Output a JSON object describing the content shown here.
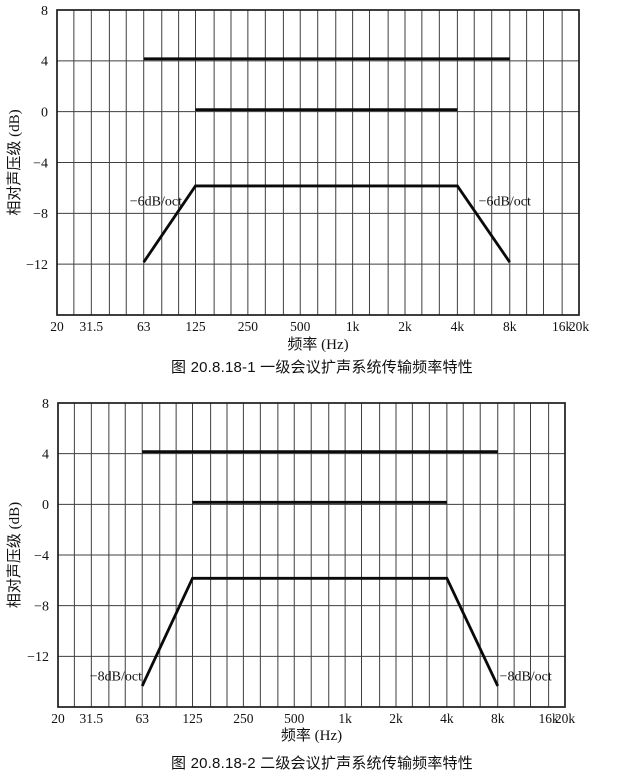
{
  "page": {
    "background": "#ffffff",
    "ink": "#111111",
    "grid_color": "#3f3f3f",
    "curve_color": "#0a0a0a"
  },
  "chart_data": [
    {
      "type": "line",
      "title": "图 20.8.18-1 一级会议扩声系统传输频率特性",
      "xlabel": "频率 (Hz)",
      "ylabel": "相对声压级 (dB)",
      "xlim": [
        20,
        20000
      ],
      "ylim": [
        -16,
        8
      ],
      "grid": "on",
      "grid_hz": [
        20,
        25,
        31.5,
        40,
        50,
        63,
        80,
        100,
        125,
        160,
        200,
        250,
        315,
        400,
        500,
        630,
        800,
        1000,
        1250,
        1600,
        2000,
        2500,
        3150,
        4000,
        5000,
        6300,
        8000,
        10000,
        12500,
        16000,
        20000
      ],
      "x_ticks": [
        {
          "hz": 20,
          "label": "20"
        },
        {
          "hz": 31.5,
          "label": "31.5"
        },
        {
          "hz": 63,
          "label": "63"
        },
        {
          "hz": 125,
          "label": "125"
        },
        {
          "hz": 250,
          "label": "250"
        },
        {
          "hz": 500,
          "label": "500"
        },
        {
          "hz": 1000,
          "label": "1k"
        },
        {
          "hz": 2000,
          "label": "2k"
        },
        {
          "hz": 4000,
          "label": "4k"
        },
        {
          "hz": 8000,
          "label": "8k"
        },
        {
          "hz": 16000,
          "label": "16k"
        },
        {
          "hz": 20000,
          "label": "20k"
        }
      ],
      "y_ticks": [
        {
          "db": 8,
          "label": "8"
        },
        {
          "db": 4,
          "label": "4"
        },
        {
          "db": 0,
          "label": "0"
        },
        {
          "db": -4,
          "label": "−4"
        },
        {
          "db": -8,
          "label": "−8"
        },
        {
          "db": -12,
          "label": "−12"
        }
      ],
      "series": [
        {
          "name": "upper-limit-line",
          "points": [
            [
              63,
              4
            ],
            [
              8000,
              4
            ]
          ]
        },
        {
          "name": "reference-0dB-line",
          "points": [
            [
              125,
              0
            ],
            [
              4000,
              0
            ]
          ]
        },
        {
          "name": "lower-limit-line",
          "points": [
            [
              63,
              -12
            ],
            [
              125,
              -6
            ],
            [
              4000,
              -6
            ],
            [
              8000,
              -12
            ]
          ]
        }
      ],
      "annotations": [
        {
          "text": "−6dB/oct",
          "hz": 74,
          "db": -7,
          "anchor": "middle"
        },
        {
          "text": "−6dB/oct",
          "hz": 5300,
          "db": -7,
          "anchor": "start"
        }
      ]
    },
    {
      "type": "line",
      "title": "图 20.8.18-2 二级会议扩声系统传输频率特性",
      "xlabel": "频率 (Hz)",
      "ylabel": "相对声压级 (dB)",
      "xlim": [
        20,
        20000
      ],
      "ylim": [
        -16,
        8
      ],
      "grid": "on",
      "grid_hz": [
        20,
        25,
        31.5,
        40,
        50,
        63,
        80,
        100,
        125,
        160,
        200,
        250,
        315,
        400,
        500,
        630,
        800,
        1000,
        1250,
        1600,
        2000,
        2500,
        3150,
        4000,
        5000,
        6300,
        8000,
        10000,
        12500,
        16000,
        20000
      ],
      "x_ticks": [
        {
          "hz": 20,
          "label": "20"
        },
        {
          "hz": 31.5,
          "label": "31.5"
        },
        {
          "hz": 63,
          "label": "63"
        },
        {
          "hz": 125,
          "label": "125"
        },
        {
          "hz": 250,
          "label": "250"
        },
        {
          "hz": 500,
          "label": "500"
        },
        {
          "hz": 1000,
          "label": "1k"
        },
        {
          "hz": 2000,
          "label": "2k"
        },
        {
          "hz": 4000,
          "label": "4k"
        },
        {
          "hz": 8000,
          "label": "8k"
        },
        {
          "hz": 16000,
          "label": "16k"
        },
        {
          "hz": 20000,
          "label": "20k"
        }
      ],
      "y_ticks": [
        {
          "db": 8,
          "label": "8"
        },
        {
          "db": 4,
          "label": "4"
        },
        {
          "db": 0,
          "label": "0"
        },
        {
          "db": -4,
          "label": "−4"
        },
        {
          "db": -8,
          "label": "−8"
        },
        {
          "db": -12,
          "label": "−12"
        }
      ],
      "series": [
        {
          "name": "upper-limit-line",
          "points": [
            [
              63,
              4
            ],
            [
              8000,
              4
            ]
          ]
        },
        {
          "name": "reference-0dB-line",
          "points": [
            [
              125,
              0
            ],
            [
              4000,
              0
            ]
          ]
        },
        {
          "name": "lower-limit-line",
          "points": [
            [
              63,
              -14.5
            ],
            [
              125,
              -6
            ],
            [
              4000,
              -6
            ],
            [
              8000,
              -14.5
            ]
          ]
        }
      ],
      "annotations": [
        {
          "text": "−8dB/oct",
          "hz": 44,
          "db": -13.5,
          "anchor": "middle"
        },
        {
          "text": "−8dB/oct",
          "hz": 8200,
          "db": -13.5,
          "anchor": "start"
        }
      ]
    }
  ]
}
